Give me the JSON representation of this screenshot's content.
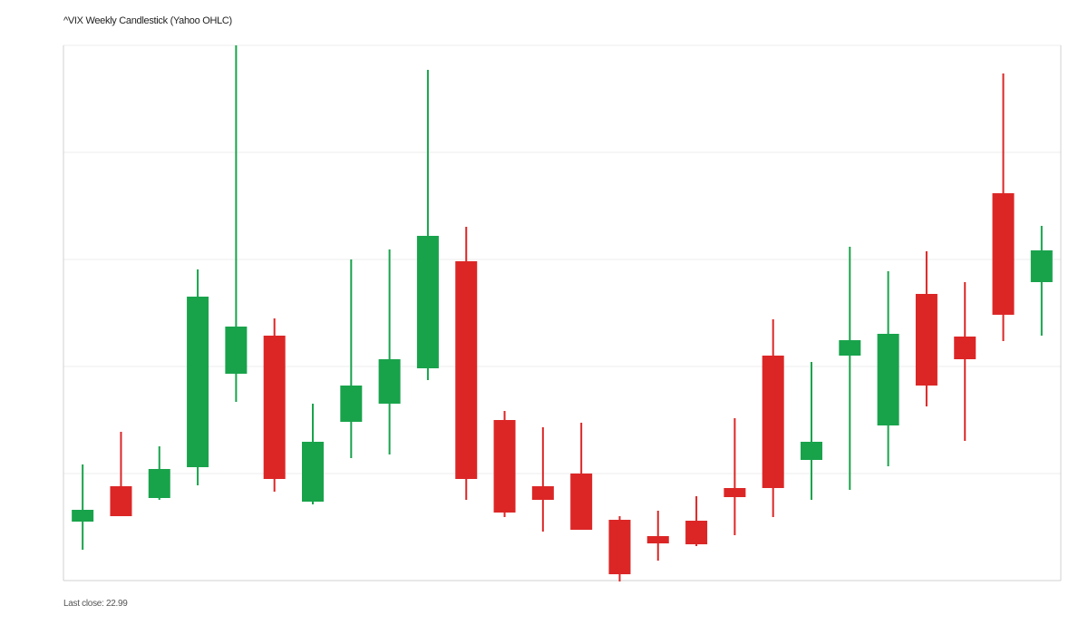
{
  "chart_data": {
    "type": "candlestick",
    "title": "^VIX Weekly Candlestick (Yahoo OHLC)",
    "footer": "Last close: 22.99",
    "ylim": [
      12.07,
      29.77
    ],
    "grid": true,
    "colors": {
      "up": "#18a34b",
      "down": "#dc2626",
      "grid": "#ececec",
      "axis": "#d0d0d0"
    },
    "candles": [
      {
        "open": 14.02,
        "high": 15.91,
        "low": 13.09,
        "close": 14.41
      },
      {
        "open": 15.19,
        "high": 16.99,
        "low": 14.2,
        "close": 14.2
      },
      {
        "open": 14.8,
        "high": 16.51,
        "low": 14.74,
        "close": 15.76
      },
      {
        "open": 15.82,
        "high": 22.36,
        "low": 15.22,
        "close": 21.46
      },
      {
        "open": 18.91,
        "high": 29.77,
        "low": 17.98,
        "close": 20.47
      },
      {
        "open": 20.17,
        "high": 20.74,
        "low": 15.01,
        "close": 15.43
      },
      {
        "open": 14.68,
        "high": 17.92,
        "low": 14.59,
        "close": 16.66
      },
      {
        "open": 17.32,
        "high": 22.69,
        "low": 16.12,
        "close": 18.52
      },
      {
        "open": 17.92,
        "high": 23.02,
        "low": 16.24,
        "close": 19.39
      },
      {
        "open": 19.09,
        "high": 28.96,
        "low": 18.7,
        "close": 23.47
      },
      {
        "open": 22.63,
        "high": 23.77,
        "low": 14.74,
        "close": 15.43
      },
      {
        "open": 17.38,
        "high": 17.68,
        "low": 14.17,
        "close": 14.32
      },
      {
        "open": 15.19,
        "high": 17.14,
        "low": 13.69,
        "close": 14.74
      },
      {
        "open": 15.61,
        "high": 17.29,
        "low": 13.75,
        "close": 13.75
      },
      {
        "open": 14.08,
        "high": 14.2,
        "low": 12.04,
        "close": 12.28
      },
      {
        "open": 13.54,
        "high": 14.38,
        "low": 12.73,
        "close": 13.3
      },
      {
        "open": 14.05,
        "high": 14.86,
        "low": 13.21,
        "close": 13.27
      },
      {
        "open": 15.13,
        "high": 17.44,
        "low": 13.57,
        "close": 14.83
      },
      {
        "open": 19.51,
        "high": 20.71,
        "low": 14.17,
        "close": 15.13
      },
      {
        "open": 16.06,
        "high": 19.3,
        "low": 14.74,
        "close": 16.66
      },
      {
        "open": 19.51,
        "high": 23.11,
        "low": 15.07,
        "close": 20.02
      },
      {
        "open": 17.2,
        "high": 22.3,
        "low": 15.85,
        "close": 20.23
      },
      {
        "open": 21.55,
        "high": 22.96,
        "low": 17.83,
        "close": 18.52
      },
      {
        "open": 20.14,
        "high": 21.94,
        "low": 16.69,
        "close": 19.39
      },
      {
        "open": 24.88,
        "high": 28.84,
        "low": 19.99,
        "close": 20.86
      },
      {
        "open": 21.94,
        "high": 23.8,
        "low": 20.17,
        "close": 22.99
      }
    ]
  }
}
